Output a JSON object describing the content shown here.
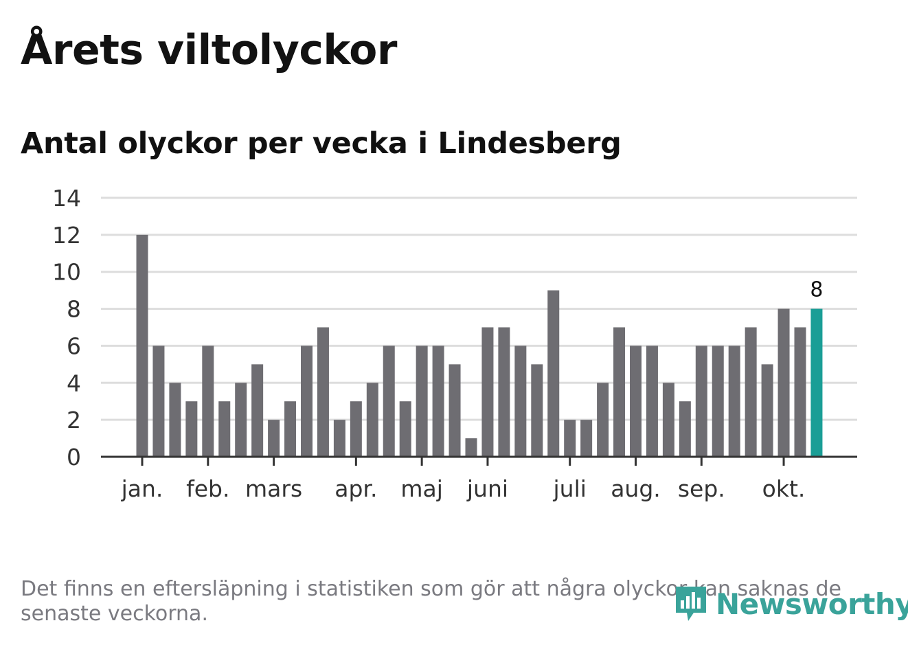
{
  "title": "Årets viltolyckor",
  "subtitle": "Antal olyckor per vecka i Lindesberg",
  "footnote": "Det finns en eftersläpning i statistiken som gör att några olyckor kan saknas de senaste veckorna.",
  "logo": {
    "text": "Newsworthy",
    "icon": "newsworthy-chart-icon"
  },
  "colors": {
    "bar": "#6e6d72",
    "highlight": "#1a9e96",
    "grid": "#dddddd",
    "axis": "#333333"
  },
  "chart_data": {
    "type": "bar",
    "title": "Antal olyckor per vecka i Lindesberg",
    "xlabel": "",
    "ylabel": "",
    "ylim": [
      0,
      14
    ],
    "yticks": [
      0,
      2,
      4,
      6,
      8,
      10,
      12,
      14
    ],
    "grid": true,
    "values": [
      12,
      6,
      4,
      3,
      6,
      3,
      4,
      5,
      2,
      3,
      6,
      7,
      2,
      3,
      4,
      6,
      3,
      6,
      6,
      5,
      1,
      7,
      7,
      6,
      5,
      9,
      2,
      2,
      4,
      7,
      6,
      6,
      4,
      3,
      6,
      6,
      6,
      7,
      5,
      8,
      7,
      8
    ],
    "highlight_index": 41,
    "highlight_label": "8",
    "month_ticks": [
      {
        "label": "jan.",
        "index": 0
      },
      {
        "label": "feb.",
        "index": 4
      },
      {
        "label": "mars",
        "index": 8
      },
      {
        "label": "apr.",
        "index": 13
      },
      {
        "label": "maj",
        "index": 17
      },
      {
        "label": "juni",
        "index": 21
      },
      {
        "label": "juli",
        "index": 26
      },
      {
        "label": "aug.",
        "index": 30
      },
      {
        "label": "sep.",
        "index": 34
      },
      {
        "label": "okt.",
        "index": 39
      }
    ]
  }
}
